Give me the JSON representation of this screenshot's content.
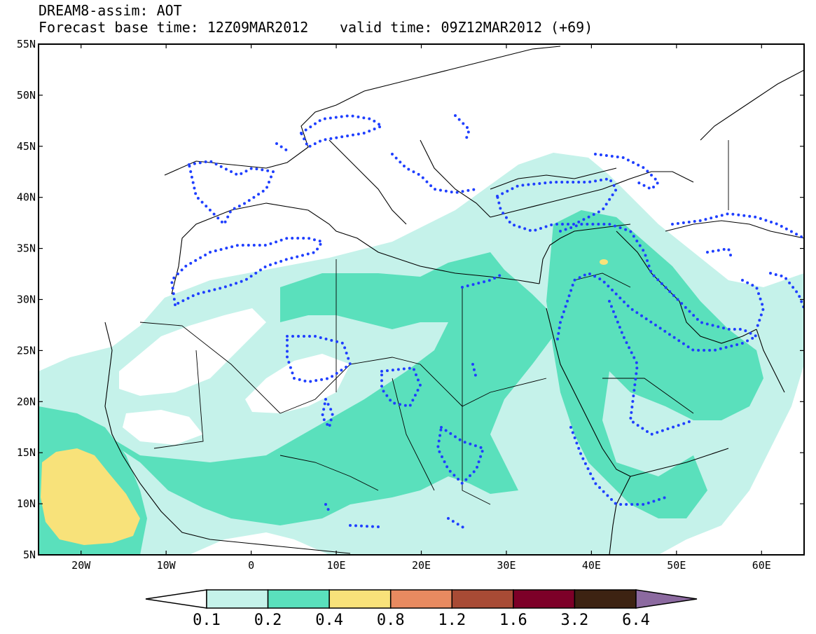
{
  "header": {
    "title": "DREAM8-assim: AOT",
    "base_time": "Forecast base time: 12Z09MAR2012",
    "valid_time": "valid time: 09Z12MAR2012 (+69)"
  },
  "map": {
    "lon_range": [
      -25,
      65
    ],
    "lat_range": [
      5,
      55
    ],
    "lat_labels": [
      "5N",
      "10N",
      "15N",
      "20N",
      "25N",
      "30N",
      "35N",
      "40N",
      "45N",
      "50N",
      "55N"
    ],
    "lon_labels": [
      "20W",
      "10W",
      "0",
      "10E",
      "20E",
      "30E",
      "40E",
      "50E",
      "60E"
    ],
    "contour_color": "#1f3fff"
  },
  "colorbar": {
    "levels": [
      "0.1",
      "0.2",
      "0.4",
      "0.8",
      "1.2",
      "1.6",
      "3.2",
      "6.4"
    ],
    "colors": [
      "#ffffff",
      "#c5f2ea",
      "#5ae0bc",
      "#f8e27a",
      "#e88a60",
      "#a84b35",
      "#7d0028",
      "#3d2312",
      "#8c6aa0"
    ]
  }
}
